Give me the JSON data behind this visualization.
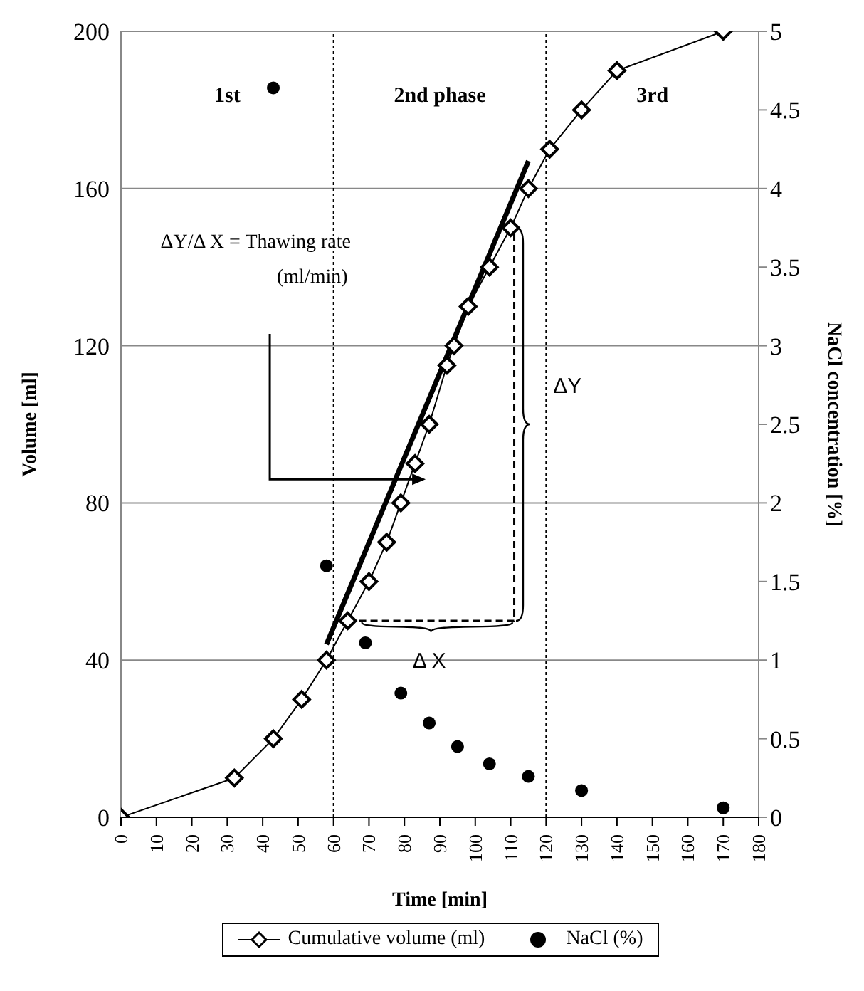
{
  "chart_data": {
    "type": "line",
    "xlabel": "Time [min]",
    "ylabel": "Volume [ml]",
    "y2label": "NaCl concentration [%]",
    "xlim": [
      0,
      180
    ],
    "xticks": [
      0,
      10,
      20,
      30,
      40,
      50,
      60,
      70,
      80,
      90,
      100,
      110,
      120,
      130,
      140,
      150,
      160,
      170,
      180
    ],
    "ylim": [
      0,
      200
    ],
    "yticks": [
      0,
      40,
      80,
      120,
      160,
      200
    ],
    "y2lim": [
      0,
      5
    ],
    "y2ticks": [
      0,
      0.5,
      1,
      1.5,
      2,
      2.5,
      3,
      3.5,
      4,
      4.5,
      5
    ],
    "grid": "y",
    "legend": "bottom",
    "series": [
      {
        "name": "Cumulative volume (ml)",
        "type": "line",
        "color": "#000000",
        "marker": "diamond",
        "x": [
          0,
          32,
          43,
          51,
          58,
          64,
          70,
          75,
          79,
          83,
          87,
          92,
          94,
          98,
          104,
          110,
          115,
          121,
          130,
          140,
          170
        ],
        "values": [
          0,
          10,
          20,
          30,
          40,
          50,
          60,
          70,
          80,
          90,
          100,
          115,
          120,
          130,
          140,
          150,
          160,
          170,
          180,
          190,
          200
        ]
      },
      {
        "name": "NaCl (%)",
        "type": "scatter",
        "axis": "y2",
        "color": "#000000",
        "marker": "circle",
        "x": [
          43,
          58,
          69,
          79,
          87,
          95,
          104,
          115,
          130,
          170
        ],
        "values": [
          4.64,
          1.6,
          1.11,
          0.79,
          0.6,
          0.45,
          0.34,
          0.26,
          0.17,
          0.06
        ]
      },
      {
        "type": "line",
        "color": "#000000",
        "marker": "none",
        "x": [
          58,
          115
        ],
        "values": [
          44,
          167
        ]
      }
    ],
    "ref_lines": [
      {
        "axis": "x",
        "value": 60,
        "color": "#000000",
        "line_style": "dotted"
      },
      {
        "axis": "x",
        "value": 120,
        "color": "#000000",
        "line_style": "dotted"
      }
    ],
    "annotations": [
      "1st",
      "2nd phase",
      "3rd",
      "ΔY/Δ X  = Thawing rate",
      "(ml/min)",
      "ΔY",
      "Δ X"
    ]
  }
}
